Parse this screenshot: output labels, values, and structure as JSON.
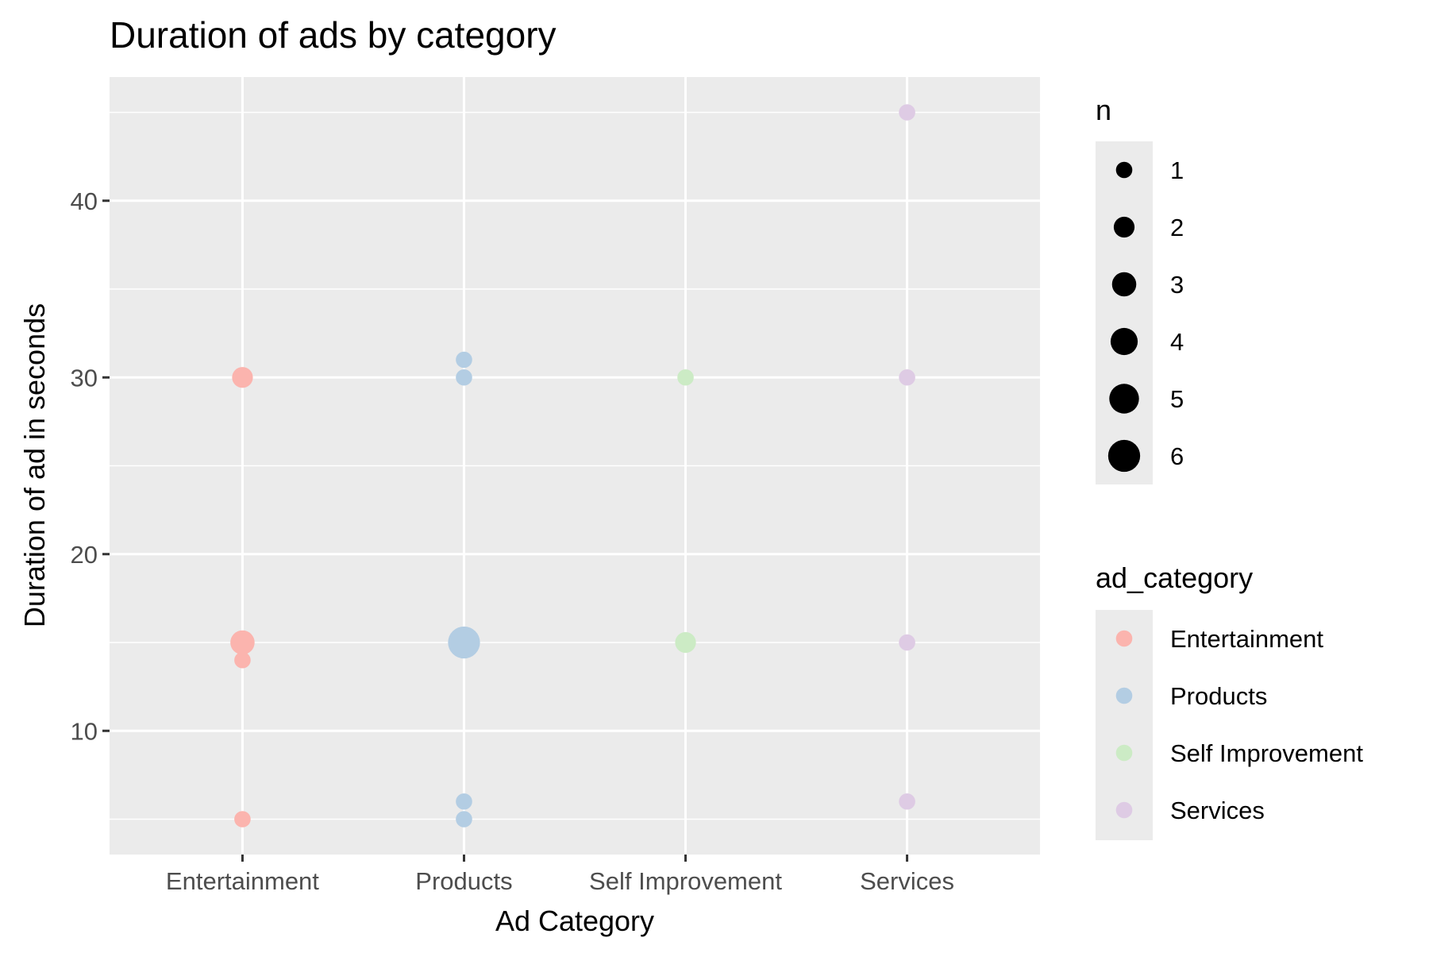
{
  "chart_data": {
    "type": "scatter",
    "title": "Duration of ads by category",
    "xlabel": "Ad Category",
    "ylabel": "Duration of ad in seconds",
    "categories": [
      "Entertainment",
      "Products",
      "Self Improvement",
      "Services"
    ],
    "ylim": [
      3,
      47
    ],
    "y_ticks": [
      10,
      20,
      30,
      40
    ],
    "grid": true,
    "colors": {
      "Entertainment": "#FBB4AE",
      "Products": "#B3CDE3",
      "Self Improvement": "#CCEBC5",
      "Services": "#DECBE4"
    },
    "points": [
      {
        "category": "Entertainment",
        "y": 30,
        "n": 2
      },
      {
        "category": "Entertainment",
        "y": 15,
        "n": 3
      },
      {
        "category": "Entertainment",
        "y": 14,
        "n": 1
      },
      {
        "category": "Entertainment",
        "y": 5,
        "n": 1
      },
      {
        "category": "Products",
        "y": 31,
        "n": 1
      },
      {
        "category": "Products",
        "y": 30,
        "n": 1
      },
      {
        "category": "Products",
        "y": 15,
        "n": 6
      },
      {
        "category": "Products",
        "y": 6,
        "n": 1
      },
      {
        "category": "Products",
        "y": 5,
        "n": 1
      },
      {
        "category": "Self Improvement",
        "y": 30,
        "n": 1
      },
      {
        "category": "Self Improvement",
        "y": 15,
        "n": 2
      },
      {
        "category": "Services",
        "y": 45,
        "n": 1
      },
      {
        "category": "Services",
        "y": 30,
        "n": 1
      },
      {
        "category": "Services",
        "y": 15,
        "n": 1
      },
      {
        "category": "Services",
        "y": 6,
        "n": 1
      }
    ],
    "legend": {
      "placement": "right",
      "size_title": "n",
      "size_values": [
        1,
        2,
        3,
        4,
        5,
        6
      ],
      "color_title": "ad_category",
      "color_entries": [
        "Entertainment",
        "Products",
        "Self Improvement",
        "Services"
      ]
    }
  }
}
